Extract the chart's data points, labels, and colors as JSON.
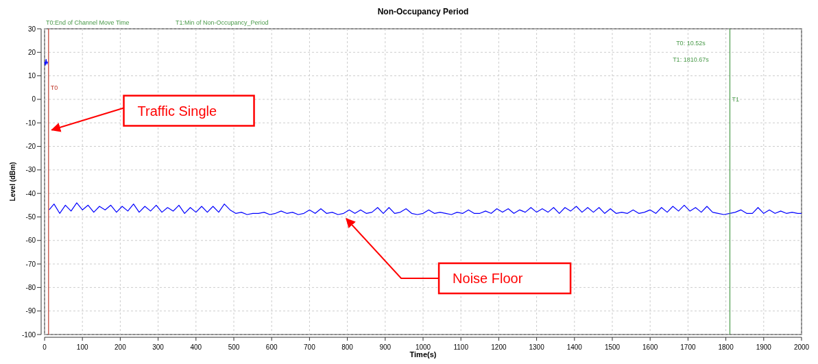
{
  "chart_data": {
    "type": "line",
    "title": "Non-Occupancy Period",
    "xlabel": "Time(s)",
    "ylabel": "Level (dBm)",
    "xlim": [
      0,
      2000
    ],
    "xticks": [
      0,
      100,
      200,
      300,
      400,
      500,
      600,
      700,
      800,
      900,
      1000,
      1100,
      1200,
      1300,
      1400,
      1500,
      1600,
      1700,
      1800,
      1900,
      2000
    ],
    "ylim": [
      -100,
      30
    ],
    "yticks": [
      -100,
      -90,
      -80,
      -70,
      -60,
      -50,
      -40,
      -30,
      -20,
      -10,
      0,
      10,
      20,
      30
    ],
    "grid": true,
    "marker": "none",
    "line_style": "solid",
    "x": [
      0,
      2,
      4,
      6,
      8,
      10,
      12,
      25,
      40,
      55,
      70,
      85,
      100,
      115,
      130,
      145,
      160,
      175,
      190,
      205,
      220,
      235,
      250,
      265,
      280,
      295,
      310,
      325,
      340,
      355,
      370,
      385,
      400,
      415,
      430,
      445,
      460,
      475,
      490,
      505,
      520,
      535,
      550,
      565,
      580,
      595,
      610,
      625,
      640,
      655,
      670,
      685,
      700,
      715,
      730,
      745,
      760,
      775,
      790,
      805,
      820,
      835,
      850,
      865,
      880,
      895,
      910,
      925,
      940,
      955,
      970,
      985,
      1000,
      1015,
      1030,
      1045,
      1060,
      1075,
      1090,
      1105,
      1120,
      1135,
      1150,
      1165,
      1180,
      1195,
      1210,
      1225,
      1240,
      1255,
      1270,
      1285,
      1300,
      1315,
      1330,
      1345,
      1360,
      1375,
      1390,
      1405,
      1420,
      1435,
      1450,
      1465,
      1480,
      1495,
      1510,
      1525,
      1540,
      1555,
      1570,
      1585,
      1600,
      1615,
      1630,
      1645,
      1660,
      1675,
      1690,
      1705,
      1720,
      1735,
      1750,
      1765,
      1780,
      1795,
      1810,
      1825,
      1840,
      1855,
      1870,
      1885,
      1900,
      1915,
      1930,
      1945,
      1960,
      1975,
      1990,
      2000
    ],
    "series": [
      {
        "color": "#0000ff",
        "values": [
          16,
          14.5,
          17,
          15,
          16,
          null,
          -47,
          -44.5,
          -48.5,
          -45,
          -47.5,
          -44,
          -47,
          -45,
          -48,
          -45.5,
          -47,
          -45,
          -48,
          -45.5,
          -47.5,
          -44.5,
          -48,
          -45.5,
          -47.5,
          -45,
          -48,
          -46,
          -47.5,
          -45,
          -48.5,
          -46,
          -48,
          -45.5,
          -48,
          -45.5,
          -48,
          -44.5,
          -47,
          -48.5,
          -48,
          -49,
          -48.5,
          -48.5,
          -48,
          -49,
          -48.5,
          -47.5,
          -48.5,
          -48,
          -49,
          -48.5,
          -47,
          -48.5,
          -46.5,
          -48.5,
          -48,
          -49,
          -48.5,
          -47,
          -48.5,
          -47,
          -48.5,
          -48,
          -46,
          -48.5,
          -46,
          -48.5,
          -48,
          -46.5,
          -48.5,
          -49,
          -48.5,
          -47,
          -48.5,
          -48,
          -48.5,
          -49,
          -48,
          -48.5,
          -47,
          -48.5,
          -48.5,
          -47.5,
          -48.5,
          -46.5,
          -48,
          -46.5,
          -48.5,
          -47,
          -48,
          -46,
          -48,
          -46.5,
          -48,
          -46,
          -48.5,
          -46,
          -47.5,
          -45.5,
          -48,
          -46,
          -48,
          -46,
          -48.5,
          -46.5,
          -48.5,
          -48,
          -48.5,
          -47,
          -48.5,
          -48,
          -47,
          -48.5,
          -46,
          -48,
          -45.5,
          -47.5,
          -45,
          -47.5,
          -46,
          -48,
          -45.5,
          -48,
          -48.5,
          -49,
          -48.5,
          -48,
          -47,
          -48.5,
          -48.5,
          -46,
          -48.5,
          -47,
          -48.5,
          -47.5,
          -48.5,
          -48,
          -48.5,
          -48.5
        ]
      }
    ],
    "ref_lines": [
      {
        "axis": "x",
        "value": 10.52,
        "label": "T0",
        "color": "#c0392b"
      },
      {
        "axis": "x",
        "value": 1810.67,
        "label": "T1",
        "color": "#4a9a4a"
      }
    ],
    "annotations": [
      "T0:End of Channel Move Time",
      "T1:Min of Non-Occupancy_Period",
      "T0: 10.52s",
      "T1: 1810.67s",
      {
        "text": "Traffic Single",
        "x": 10,
        "y": -13
      },
      {
        "text": "Noise Floor",
        "x": 790,
        "y": -49
      }
    ]
  }
}
